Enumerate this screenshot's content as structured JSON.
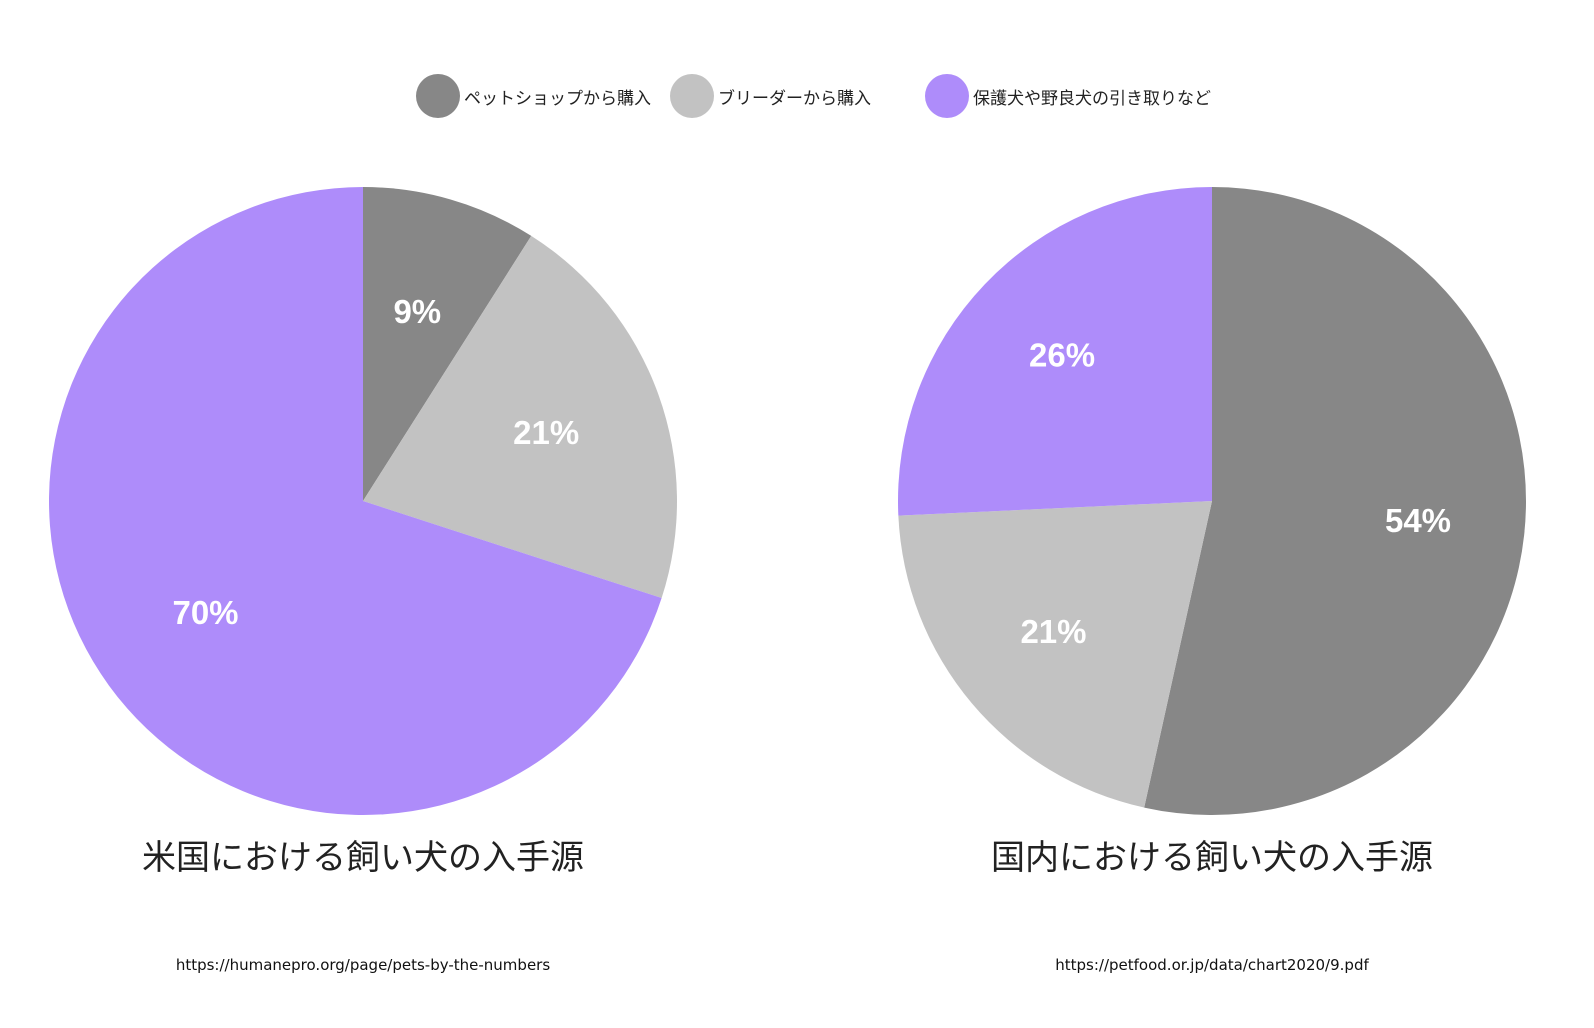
{
  "legend": [
    {
      "label": "ペットショップから購入",
      "color": "#878787"
    },
    {
      "label": "ブリーダーから購入",
      "color": "#c2c2c2"
    },
    {
      "label": "保護犬や野良犬の引き取りなど",
      "color": "#ae8cfa"
    }
  ],
  "chart_data": [
    {
      "type": "pie",
      "title": "米国における飼い犬の入手源",
      "source": "https://humanepro.org/page/pets-by-the-numbers",
      "start": "12 o'clock, clockwise",
      "slices": [
        {
          "label": "ペットショップから購入",
          "value": 9,
          "display": "9%",
          "color": "#878787"
        },
        {
          "label": "ブリーダーから購入",
          "value": 21,
          "display": "21%",
          "color": "#c2c2c2"
        },
        {
          "label": "保護犬や野良犬の引き取りなど",
          "value": 70,
          "display": "70%",
          "color": "#ae8cfa"
        }
      ]
    },
    {
      "type": "pie",
      "title": "国内における飼い犬の入手源",
      "source": "https://petfood.or.jp/data/chart2020/9.pdf",
      "start": "12 o'clock, clockwise",
      "slices": [
        {
          "label": "ペットショップから購入",
          "value": 54,
          "display": "54%",
          "color": "#878787"
        },
        {
          "label": "ブリーダーから購入",
          "value": 21,
          "display": "21%",
          "color": "#c2c2c2"
        },
        {
          "label": "保護犬や野良犬の引き取りなど",
          "value": 26,
          "display": "26%",
          "color": "#ae8cfa"
        }
      ]
    }
  ]
}
